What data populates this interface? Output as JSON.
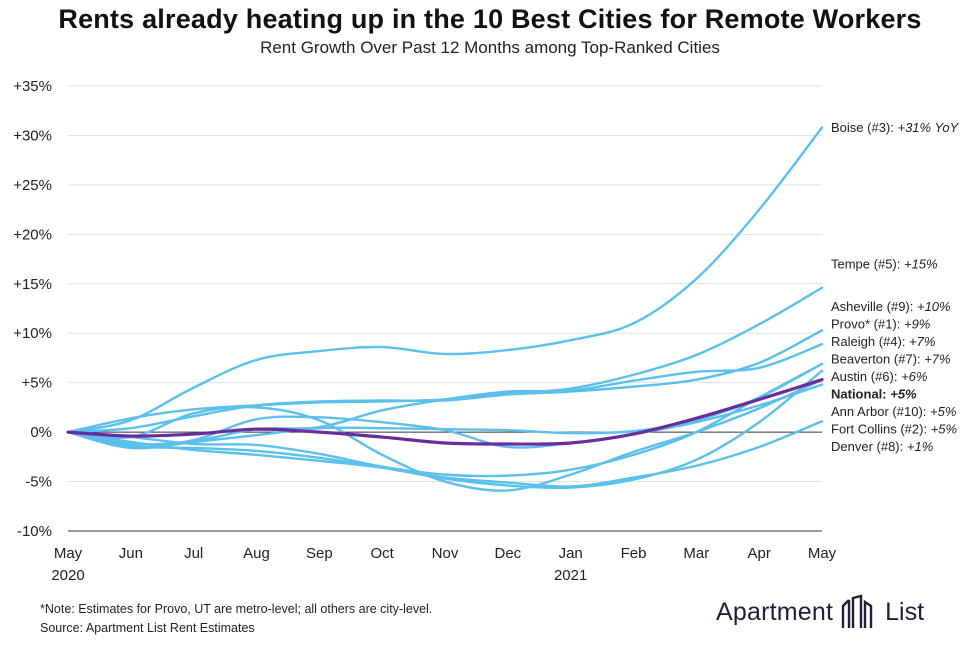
{
  "title": "Rents already heating up in the 10  Best Cities for Remote Workers",
  "subtitle": "Rent Growth Over Past 12 Months among Top-Ranked Cities",
  "footnote": "*Note: Estimates for Provo, UT are metro-level; all others are city-level.",
  "source": "Source: Apartment List Rent Estimates",
  "logo": {
    "word1": "Apartment",
    "word2": "List"
  },
  "colors": {
    "city": "#5bc0eb",
    "national": "#6a2c9f",
    "grid": "#e2e2e2",
    "axis": "#333333"
  },
  "chart_data": {
    "type": "line",
    "title": "Rent Growth Over Past 12 Months among Top-Ranked Cities",
    "xlabel": "",
    "ylabel": "",
    "ylim": [
      -10,
      35
    ],
    "yticks": [
      -10,
      -5,
      0,
      5,
      10,
      15,
      20,
      25,
      30,
      35
    ],
    "ytick_labels": [
      "-10%",
      "-5%",
      "0%",
      "+5%",
      "+10%",
      "+15%",
      "+20%",
      "+25%",
      "+30%",
      "+35%"
    ],
    "categories": [
      "May\n2020",
      "Jun",
      "Jul",
      "Aug",
      "Sep",
      "Oct",
      "Nov",
      "Dec",
      "Jan\n2021",
      "Feb",
      "Mar",
      "Apr",
      "May"
    ],
    "grid": "horizontal",
    "series": [
      {
        "name": "Boise (#3)",
        "label": "Boise (#3): ",
        "value_label": "+31% YoY",
        "highlight": false,
        "values": [
          0,
          1.2,
          4.5,
          7.3,
          8.2,
          8.6,
          7.9,
          8.3,
          9.3,
          11.0,
          15.5,
          22.5,
          30.8
        ]
      },
      {
        "name": "Tempe (#5)",
        "label": "Tempe (#5): ",
        "value_label": "+15%",
        "highlight": false,
        "values": [
          0,
          1.4,
          2.3,
          2.7,
          3.0,
          3.1,
          3.3,
          3.9,
          4.4,
          5.8,
          7.8,
          10.9,
          14.6
        ]
      },
      {
        "name": "Asheville (#9)",
        "label": "Asheville (#9): ",
        "value_label": "+10%",
        "highlight": false,
        "values": [
          0,
          0.4,
          1.6,
          2.7,
          3.1,
          3.2,
          3.2,
          3.8,
          4.1,
          4.6,
          5.3,
          7.0,
          10.3
        ]
      },
      {
        "name": "Provo* (#1)",
        "label": "Provo* (#1): ",
        "value_label": "+9%",
        "highlight": false,
        "values": [
          0,
          -1.2,
          -0.9,
          0.3,
          0.5,
          2.2,
          3.3,
          4.1,
          4.2,
          5.2,
          6.1,
          6.5,
          8.9
        ]
      },
      {
        "name": "Raleigh (#4)",
        "label": "Raleigh (#4): ",
        "value_label": "+7%",
        "highlight": false,
        "values": [
          0,
          -1.6,
          -1.0,
          -0.3,
          0.4,
          0.4,
          0.3,
          0.2,
          -0.1,
          0.1,
          1.2,
          3.5,
          6.9
        ]
      },
      {
        "name": "Beaverton (#7)",
        "label": "Beaverton (#7): ",
        "value_label": "+7%",
        "highlight": false,
        "values": [
          0,
          -0.5,
          -1.2,
          -1.3,
          -2.2,
          -3.5,
          -4.3,
          -4.4,
          -3.8,
          -2.3,
          0.0,
          3.5,
          6.9
        ]
      },
      {
        "name": "Austin (#6)",
        "label": "Austin (#6): ",
        "value_label": "+6%",
        "highlight": false,
        "values": [
          0,
          -1.0,
          -1.8,
          -2.3,
          -2.9,
          -3.6,
          -4.7,
          -5.4,
          -5.6,
          -4.8,
          -2.8,
          1.0,
          6.2
        ]
      },
      {
        "name": "National",
        "label": "National: ",
        "value_label": "+5%",
        "highlight": true,
        "values": [
          0,
          -0.4,
          -0.2,
          0.3,
          0.0,
          -0.5,
          -1.1,
          -1.2,
          -1.1,
          -0.2,
          1.4,
          3.3,
          5.3
        ]
      },
      {
        "name": "Ann Arbor (#10)",
        "label": "Ann Arbor (#10): ",
        "value_label": "+5%",
        "highlight": false,
        "values": [
          0,
          -0.5,
          1.9,
          2.5,
          1.2,
          -2.3,
          -5.0,
          -5.9,
          -4.3,
          -2.0,
          0.0,
          2.4,
          5.3
        ]
      },
      {
        "name": "Fort Collins (#2)",
        "label": "Fort Collins (#2): ",
        "value_label": "+5%",
        "highlight": false,
        "values": [
          0,
          -1.5,
          -0.8,
          1.3,
          1.5,
          1.0,
          0.2,
          -1.5,
          -1.1,
          -0.2,
          1.0,
          2.7,
          4.8
        ]
      },
      {
        "name": "Denver (#8)",
        "label": "Denver (#8): ",
        "value_label": "+1%",
        "highlight": false,
        "values": [
          0,
          -1.4,
          -1.6,
          -1.9,
          -2.6,
          -3.6,
          -4.6,
          -5.1,
          -5.5,
          -4.6,
          -3.4,
          -1.5,
          1.1
        ]
      }
    ]
  }
}
